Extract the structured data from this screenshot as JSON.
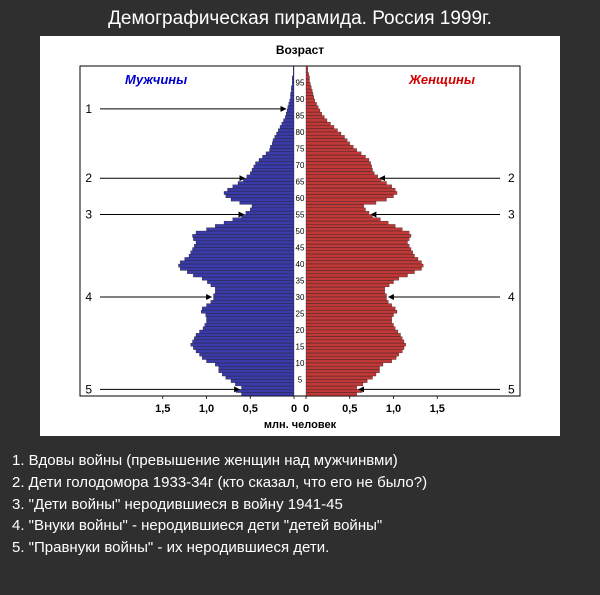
{
  "title": "Демографическая пирамида. Россия 1999г.",
  "chart": {
    "type": "population-pyramid",
    "axis_label_top": "Возраст",
    "axis_label_bottom": "млн. человек",
    "male_label": "Мужчины",
    "female_label": "Женщины",
    "male_color": "#3a3aa8",
    "female_color": "#c03838",
    "male_label_color": "#0000d0",
    "female_label_color": "#d00000",
    "background_color": "#ffffff",
    "frame_color": "#000000",
    "bar_outline_color": "#000000",
    "text_color": "#000000",
    "title_fontsize": 12,
    "label_fontsize": 11,
    "tick_fontsize": 9,
    "age_max": 100,
    "age_step_label": 5,
    "x_ticks": [
      "1,5",
      "1,0",
      "0,5",
      "0",
      "0",
      "0,5",
      "1,0",
      "1,5"
    ],
    "x_tick_positions_mln": [
      -1.5,
      -1.0,
      -0.5,
      0,
      0,
      0.5,
      1.0,
      1.5
    ],
    "max_value_mln": 1.6,
    "male_values_mln": [
      0.6,
      0.66,
      0.6,
      0.67,
      0.72,
      0.78,
      0.82,
      0.86,
      0.86,
      0.9,
      1.0,
      1.05,
      1.08,
      1.12,
      1.15,
      1.18,
      1.16,
      1.14,
      1.12,
      1.08,
      1.04,
      1.02,
      1.0,
      1.0,
      1.01,
      1.06,
      1.05,
      1.0,
      0.95,
      0.92,
      0.92,
      0.9,
      0.9,
      0.95,
      0.99,
      1.05,
      1.15,
      1.22,
      1.3,
      1.32,
      1.3,
      1.25,
      1.2,
      1.18,
      1.16,
      1.14,
      1.12,
      1.15,
      1.16,
      1.12,
      1.0,
      0.9,
      0.8,
      0.7,
      0.6,
      0.55,
      0.5,
      0.48,
      0.62,
      0.72,
      0.78,
      0.8,
      0.76,
      0.7,
      0.64,
      0.58,
      0.54,
      0.5,
      0.48,
      0.46,
      0.44,
      0.4,
      0.36,
      0.32,
      0.28,
      0.27,
      0.25,
      0.24,
      0.22,
      0.2,
      0.18,
      0.16,
      0.14,
      0.12,
      0.1,
      0.09,
      0.08,
      0.07,
      0.06,
      0.05,
      0.04,
      0.04,
      0.03,
      0.03,
      0.02,
      0.02,
      0.02,
      0.01,
      0.01,
      0.01
    ],
    "female_values_mln": [
      0.58,
      0.64,
      0.58,
      0.65,
      0.7,
      0.76,
      0.8,
      0.84,
      0.84,
      0.88,
      0.98,
      1.03,
      1.06,
      1.1,
      1.12,
      1.14,
      1.12,
      1.1,
      1.08,
      1.05,
      1.02,
      1.0,
      0.98,
      0.98,
      1.0,
      1.04,
      1.02,
      0.98,
      0.94,
      0.92,
      0.92,
      0.9,
      0.9,
      0.95,
      1.0,
      1.06,
      1.16,
      1.24,
      1.32,
      1.34,
      1.32,
      1.28,
      1.24,
      1.22,
      1.2,
      1.18,
      1.16,
      1.18,
      1.2,
      1.18,
      1.1,
      1.02,
      0.94,
      0.85,
      0.76,
      0.72,
      0.68,
      0.66,
      0.8,
      0.92,
      1.0,
      1.04,
      1.02,
      0.98,
      0.92,
      0.86,
      0.82,
      0.78,
      0.76,
      0.75,
      0.74,
      0.72,
      0.68,
      0.63,
      0.58,
      0.54,
      0.5,
      0.47,
      0.44,
      0.4,
      0.36,
      0.32,
      0.28,
      0.24,
      0.21,
      0.18,
      0.16,
      0.14,
      0.12,
      0.1,
      0.09,
      0.08,
      0.07,
      0.06,
      0.05,
      0.04,
      0.04,
      0.03,
      0.02,
      0.02
    ],
    "annotations": [
      {
        "num": "1",
        "age": 87,
        "side": "left"
      },
      {
        "num": "2",
        "age": 66,
        "side": "both"
      },
      {
        "num": "3",
        "age": 55,
        "side": "both"
      },
      {
        "num": "4",
        "age": 30,
        "side": "both"
      },
      {
        "num": "5",
        "age": 2,
        "side": "both"
      }
    ]
  },
  "legend_items": [
    "1. Вдовы войны (превышение женщин над мужчинвми)",
    "2. Дети голодомора 1933-34г (кто сказал, что его не было?)",
    "3. \"Дети войны\" неродившиеся в войну 1941-45",
    "4. \"Внуки войны\" - неродившиеся дети \"детей войны\"",
    "5. \"Правнуки войны\" - их неродившиеся дети."
  ]
}
